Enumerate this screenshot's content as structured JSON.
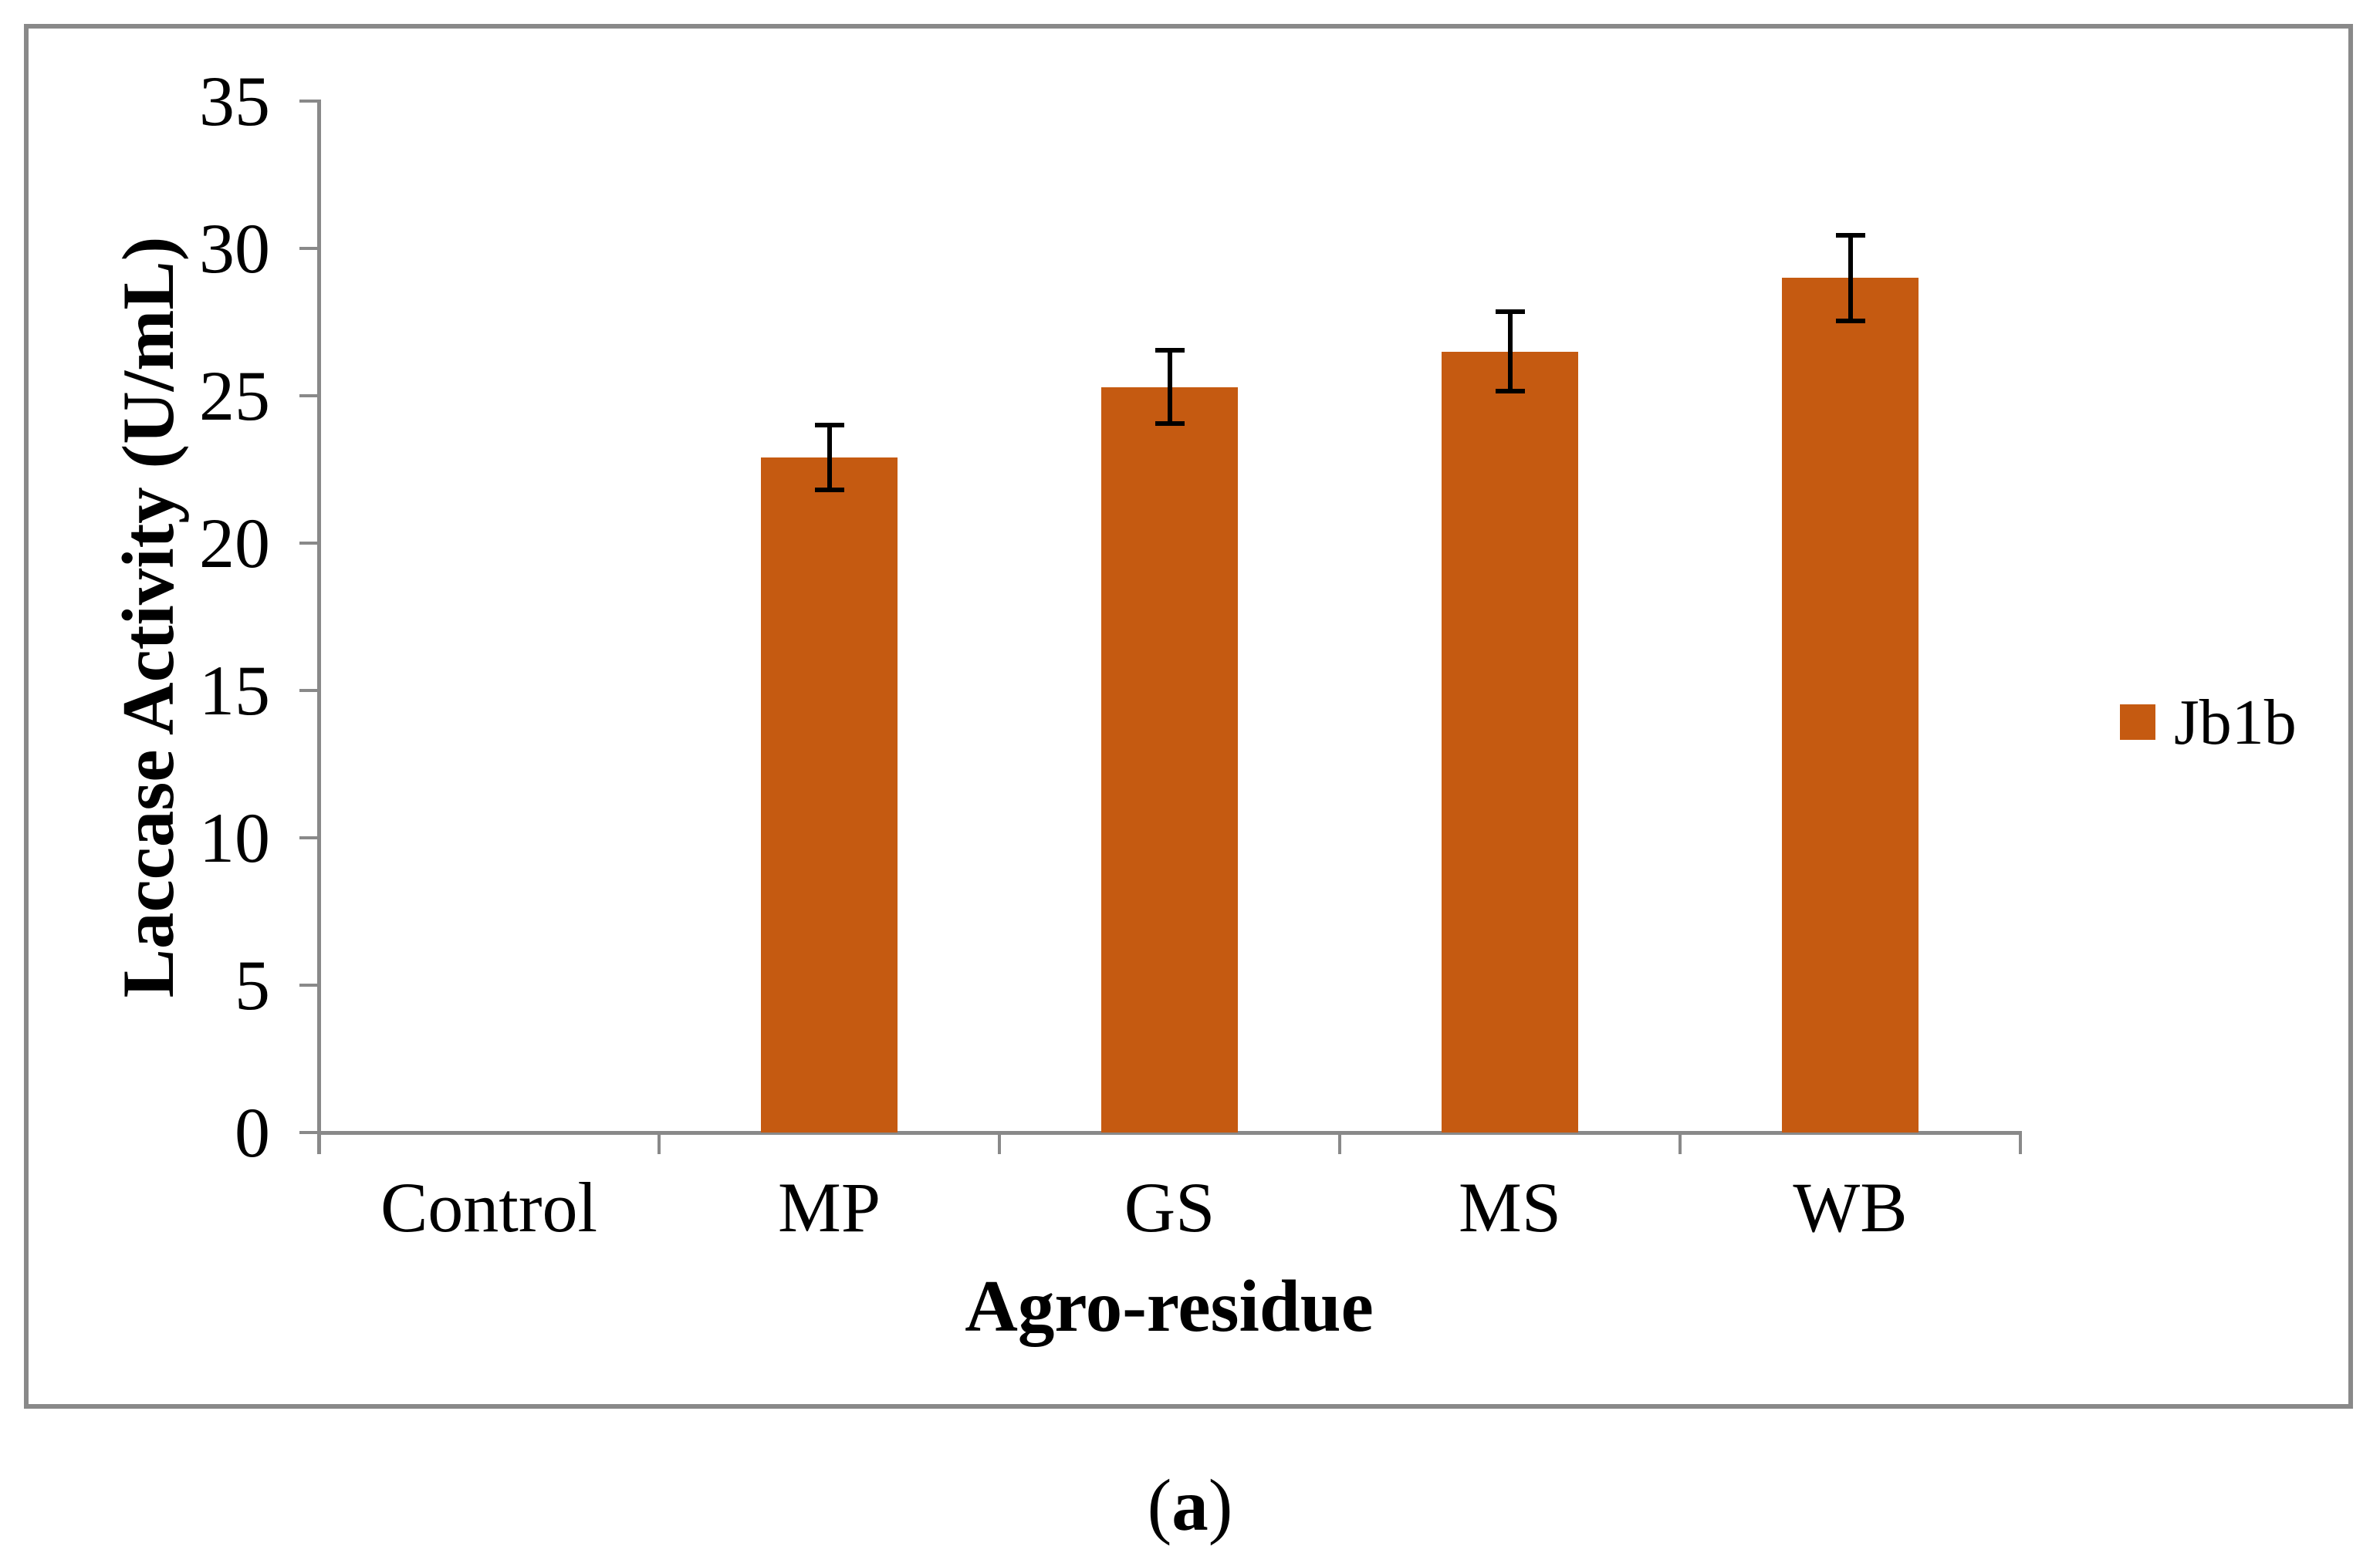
{
  "figure": {
    "caption_prefix": "(",
    "caption_letter": "a",
    "caption_suffix": ")"
  },
  "legend": {
    "label": "Jb1b",
    "swatch_color": "#C55A11"
  },
  "chart_data": {
    "type": "bar",
    "title": "",
    "categories": [
      "Control",
      "MP",
      "GS",
      "MS",
      "WB"
    ],
    "series": [
      {
        "name": "Jb1b",
        "color": "#C55A11",
        "values": [
          0,
          22.9,
          25.3,
          26.5,
          29.0
        ],
        "errors": [
          0,
          1.1,
          1.25,
          1.35,
          1.45
        ]
      }
    ],
    "xlabel": "Agro-residue",
    "ylabel": "Laccase Activity (U/mL)",
    "ylim": [
      0,
      35
    ],
    "yticks": [
      0,
      5,
      10,
      15,
      20,
      25,
      30,
      35
    ],
    "grid": false,
    "legend_position": "right",
    "error_bars": true,
    "axis_color": "#898989",
    "error_bar_color": "#000000",
    "text_color": "#000000"
  }
}
